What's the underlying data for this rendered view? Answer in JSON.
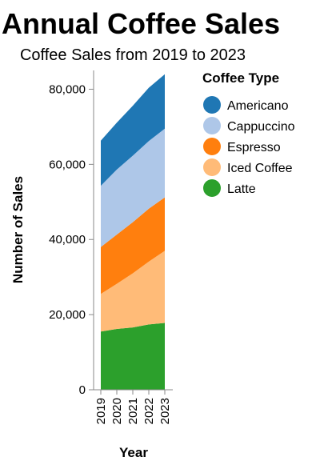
{
  "chart_data": {
    "type": "area",
    "stacked": true,
    "title": "Annual Coffee Sales",
    "subtitle": "Coffee Sales from 2019 to 2023",
    "xlabel": "Year",
    "ylabel": "Number of Sales",
    "x": [
      "2019",
      "2020",
      "2021",
      "2022",
      "2023"
    ],
    "ylim": [
      0,
      85000
    ],
    "y_ticks": [
      0,
      20000,
      40000,
      60000,
      80000
    ],
    "y_tick_labels": [
      "0",
      "20,000",
      "40,000",
      "60,000",
      "80,000"
    ],
    "grid": false,
    "legend": {
      "title": "Coffee Type",
      "placement": "right"
    },
    "series": [
      {
        "name": "Latte",
        "color": "#2ca02c",
        "values": [
          15500,
          16200,
          16600,
          17400,
          17800
        ]
      },
      {
        "name": "Iced Coffee",
        "color": "#ffbb78",
        "values": [
          10000,
          12000,
          14400,
          16700,
          19200
        ]
      },
      {
        "name": "Espresso",
        "color": "#ff7f0e",
        "values": [
          12500,
          13100,
          13600,
          14100,
          14200
        ]
      },
      {
        "name": "Cappuccino",
        "color": "#aec7e8",
        "values": [
          16300,
          17300,
          17700,
          18000,
          18300
        ]
      },
      {
        "name": "Americano",
        "color": "#1f77b4",
        "values": [
          12000,
          12500,
          13300,
          14200,
          14500
        ]
      }
    ],
    "legend_order": [
      "Americano",
      "Cappuccino",
      "Espresso",
      "Iced Coffee",
      "Latte"
    ]
  }
}
